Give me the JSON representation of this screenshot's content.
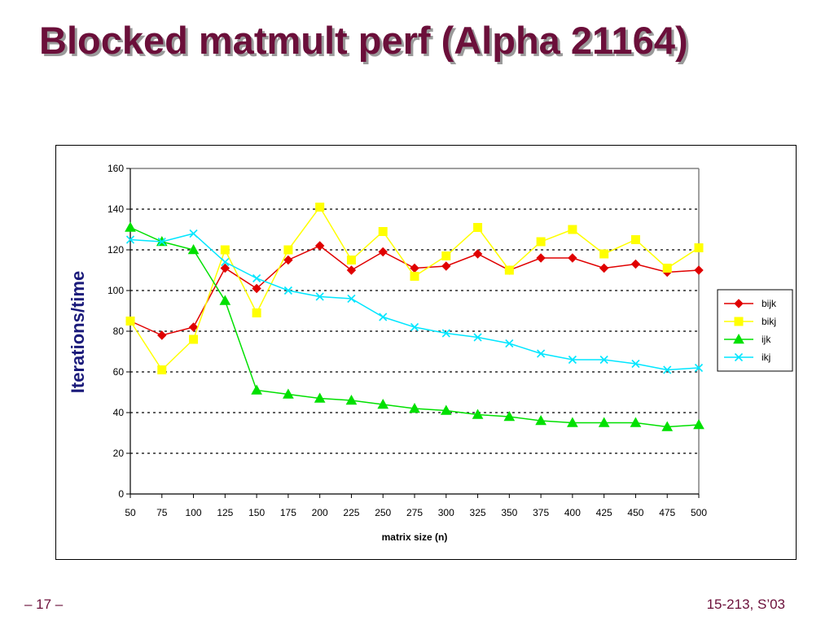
{
  "slide": {
    "title": "Blocked matmult perf (Alpha 21164)",
    "footer_left": "– 17 –",
    "footer_right": "15-213, S’03"
  },
  "colors": {
    "title": "#6b0f3a",
    "ylabel": "#1a1a7a",
    "bijk": "#e00000",
    "bikj": "#ffff00",
    "ijk": "#00e000",
    "ikj": "#00e6ff"
  },
  "chart_data": {
    "type": "line",
    "title": "",
    "xlabel": "matrix size (n)",
    "ylabel": "Iterations/time",
    "ylim": [
      0,
      160
    ],
    "yticks": [
      0,
      20,
      40,
      60,
      80,
      100,
      120,
      140,
      160
    ],
    "grid": "horizontal dotted",
    "legend_position": "right",
    "categories": [
      "50",
      "75",
      "100",
      "125",
      "150",
      "175",
      "200",
      "225",
      "250",
      "275",
      "300",
      "325",
      "350",
      "375",
      "400",
      "425",
      "450",
      "475",
      "500"
    ],
    "series": [
      {
        "name": "bijk",
        "marker": "diamond",
        "values": [
          85,
          78,
          82,
          111,
          101,
          115,
          122,
          110,
          119,
          111,
          112,
          118,
          110,
          116,
          116,
          111,
          113,
          109,
          110
        ]
      },
      {
        "name": "bikj",
        "marker": "square",
        "values": [
          85,
          61,
          76,
          120,
          89,
          120,
          141,
          115,
          129,
          107,
          117,
          131,
          110,
          124,
          130,
          118,
          125,
          111,
          121
        ]
      },
      {
        "name": "ijk",
        "marker": "triangle",
        "values": [
          131,
          124,
          120,
          95,
          51,
          49,
          47,
          46,
          44,
          42,
          41,
          39,
          38,
          36,
          35,
          35,
          35,
          33,
          34
        ]
      },
      {
        "name": "ikj",
        "marker": "x",
        "values": [
          125,
          124,
          128,
          114,
          106,
          100,
          97,
          96,
          87,
          82,
          79,
          77,
          74,
          69,
          66,
          66,
          64,
          61,
          62
        ]
      }
    ]
  }
}
